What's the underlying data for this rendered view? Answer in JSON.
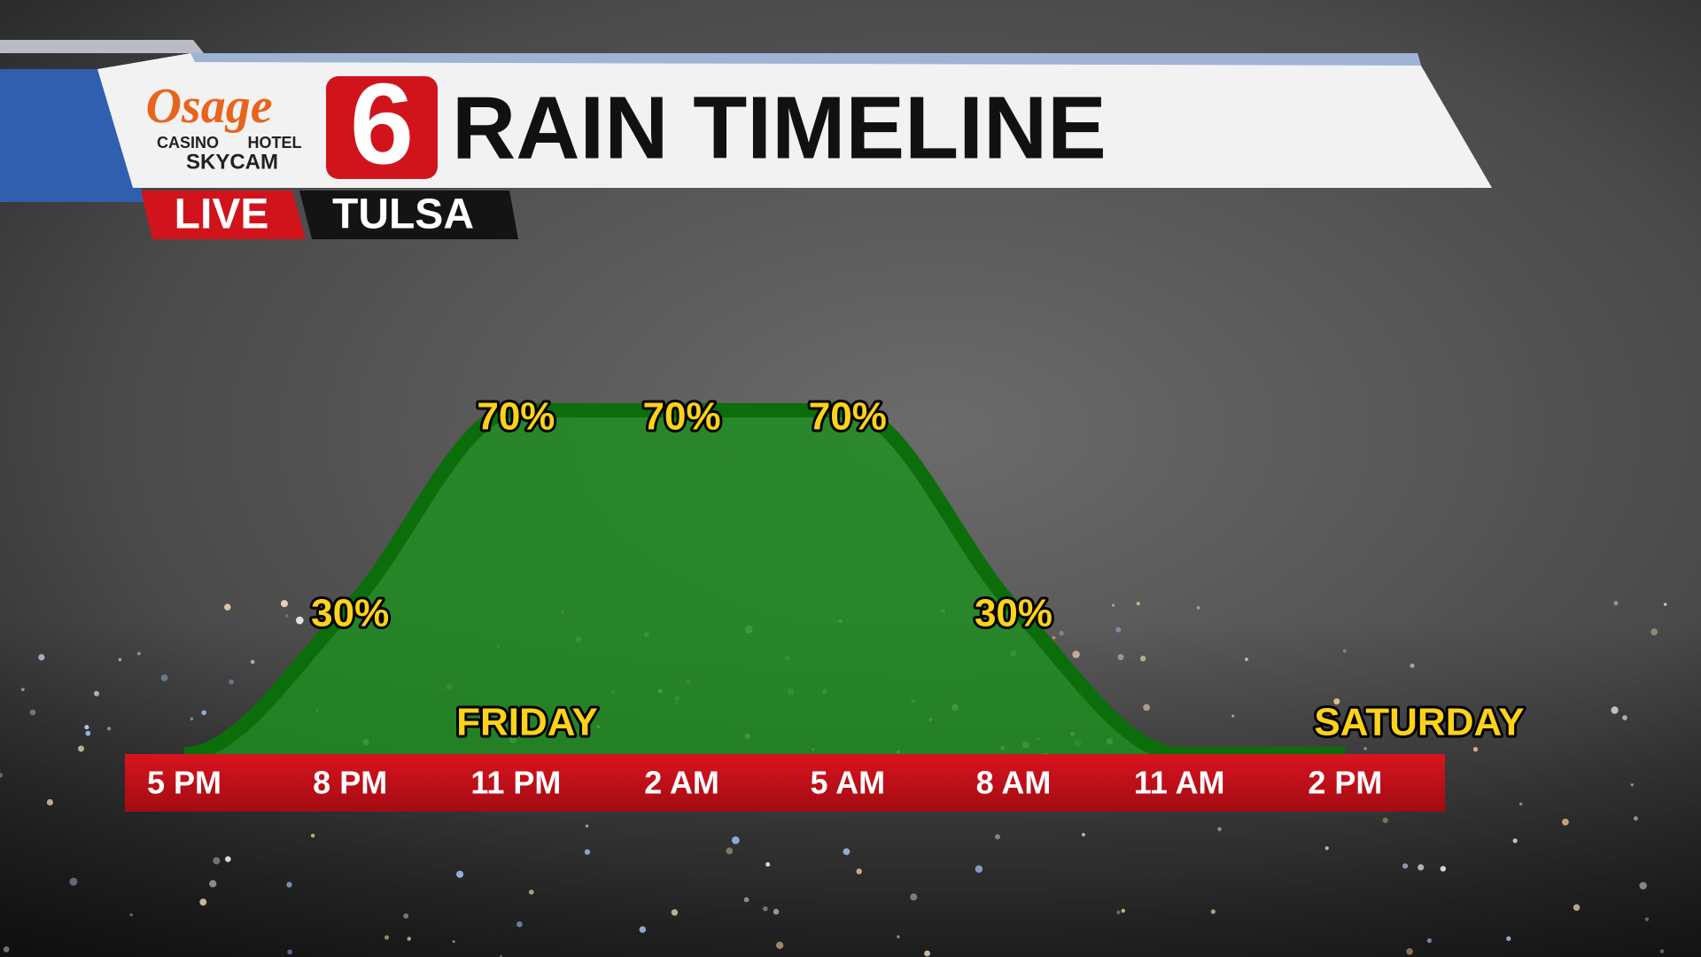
{
  "header": {
    "logo_script": "Osage",
    "logo_casino": "CASINO",
    "logo_hotel": "HOTEL",
    "logo_skycam": "SKYCAM",
    "channel": "6",
    "title": "RAIN TIMELINE",
    "live": "LIVE",
    "location": "TULSA"
  },
  "chart_data": {
    "type": "area",
    "categories": [
      "5 PM",
      "8 PM",
      "11 PM",
      "2 AM",
      "5 AM",
      "8 AM",
      "11 AM",
      "2 PM"
    ],
    "values": [
      0,
      30,
      70,
      70,
      70,
      30,
      0,
      0
    ],
    "value_labels": [
      null,
      "30%",
      "70%",
      "70%",
      "70%",
      "30%",
      null,
      null
    ],
    "color": "#1f8f1f",
    "line_color": "#0b6e0b",
    "label_color": "#ffd21a",
    "annotations": [
      "FRIDAY",
      "SATURDAY"
    ]
  }
}
